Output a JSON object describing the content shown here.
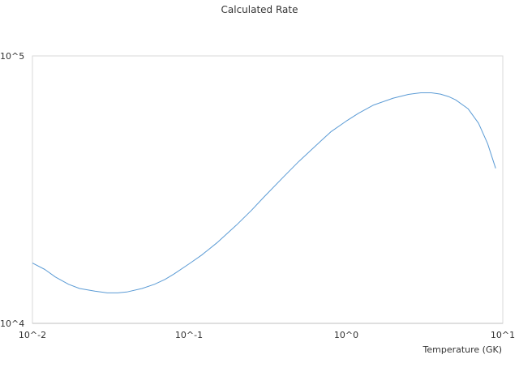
{
  "chart_data": {
    "type": "line",
    "title": "Calculated Rate",
    "xlabel": "Temperature (GK)",
    "ylabel": "",
    "x_scale": "log",
    "y_scale": "log",
    "xlim": [
      0.01,
      10
    ],
    "ylim": [
      10000,
      100000
    ],
    "x_tick_labels": [
      "10^-2",
      "10^-1",
      "10^0",
      "10^1"
    ],
    "y_tick_labels": [
      "10^4",
      "10^5"
    ],
    "grid": false,
    "legend": "none",
    "series": [
      {
        "color": "#5b9bd5",
        "x": [
          0.01,
          0.012,
          0.014,
          0.017,
          0.02,
          0.025,
          0.03,
          0.035,
          0.04,
          0.05,
          0.06,
          0.07,
          0.08,
          0.1,
          0.12,
          0.15,
          0.2,
          0.25,
          0.3,
          0.4,
          0.5,
          0.6,
          0.7,
          0.8,
          1.0,
          1.2,
          1.5,
          2.0,
          2.5,
          3.0,
          3.5,
          4.0,
          4.5,
          5.0,
          6.0,
          7.0,
          8.0,
          9.0
        ],
        "values": [
          16800,
          15900,
          14900,
          14000,
          13500,
          13200,
          13000,
          13000,
          13100,
          13500,
          14000,
          14600,
          15300,
          16700,
          18000,
          20000,
          23300,
          26500,
          29700,
          35300,
          40300,
          44500,
          48400,
          52000,
          57000,
          61000,
          65500,
          69500,
          71800,
          72800,
          72800,
          72000,
          70500,
          68500,
          63500,
          56000,
          47000,
          38000
        ]
      }
    ]
  }
}
